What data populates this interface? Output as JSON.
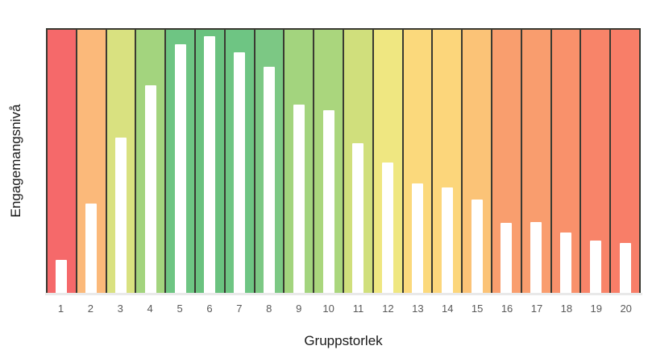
{
  "chart_data": {
    "type": "bar",
    "title": "",
    "xlabel": "Gruppstorlek",
    "ylabel": "Engagemangsnivå",
    "categories": [
      "1",
      "2",
      "3",
      "4",
      "5",
      "6",
      "7",
      "8",
      "9",
      "10",
      "11",
      "12",
      "13",
      "14",
      "15",
      "16",
      "17",
      "18",
      "19",
      "20"
    ],
    "values": [
      12.5,
      34,
      59,
      79,
      94.5,
      97.5,
      91.5,
      86,
      71.5,
      69.5,
      57,
      49.5,
      41.5,
      40,
      35.5,
      26.5,
      27,
      23,
      20,
      19
    ],
    "ylim": [
      0,
      100
    ],
    "grid": false,
    "legend": "none",
    "bar_color": "#ffffff",
    "separator_color": "#3a3a32",
    "tick_color": "#595959",
    "band_colors": [
      "#f5696a",
      "#fbb97a",
      "#d9e180",
      "#a3d47e",
      "#6ec583",
      "#6ac27f",
      "#6ec583",
      "#7cc884",
      "#a3d47e",
      "#aad67d",
      "#d0df7c",
      "#efe781",
      "#fbd97c",
      "#fcd67b",
      "#fbc377",
      "#f99e6e",
      "#f99d6e",
      "#f9916b",
      "#f88469",
      "#f87e68"
    ]
  }
}
